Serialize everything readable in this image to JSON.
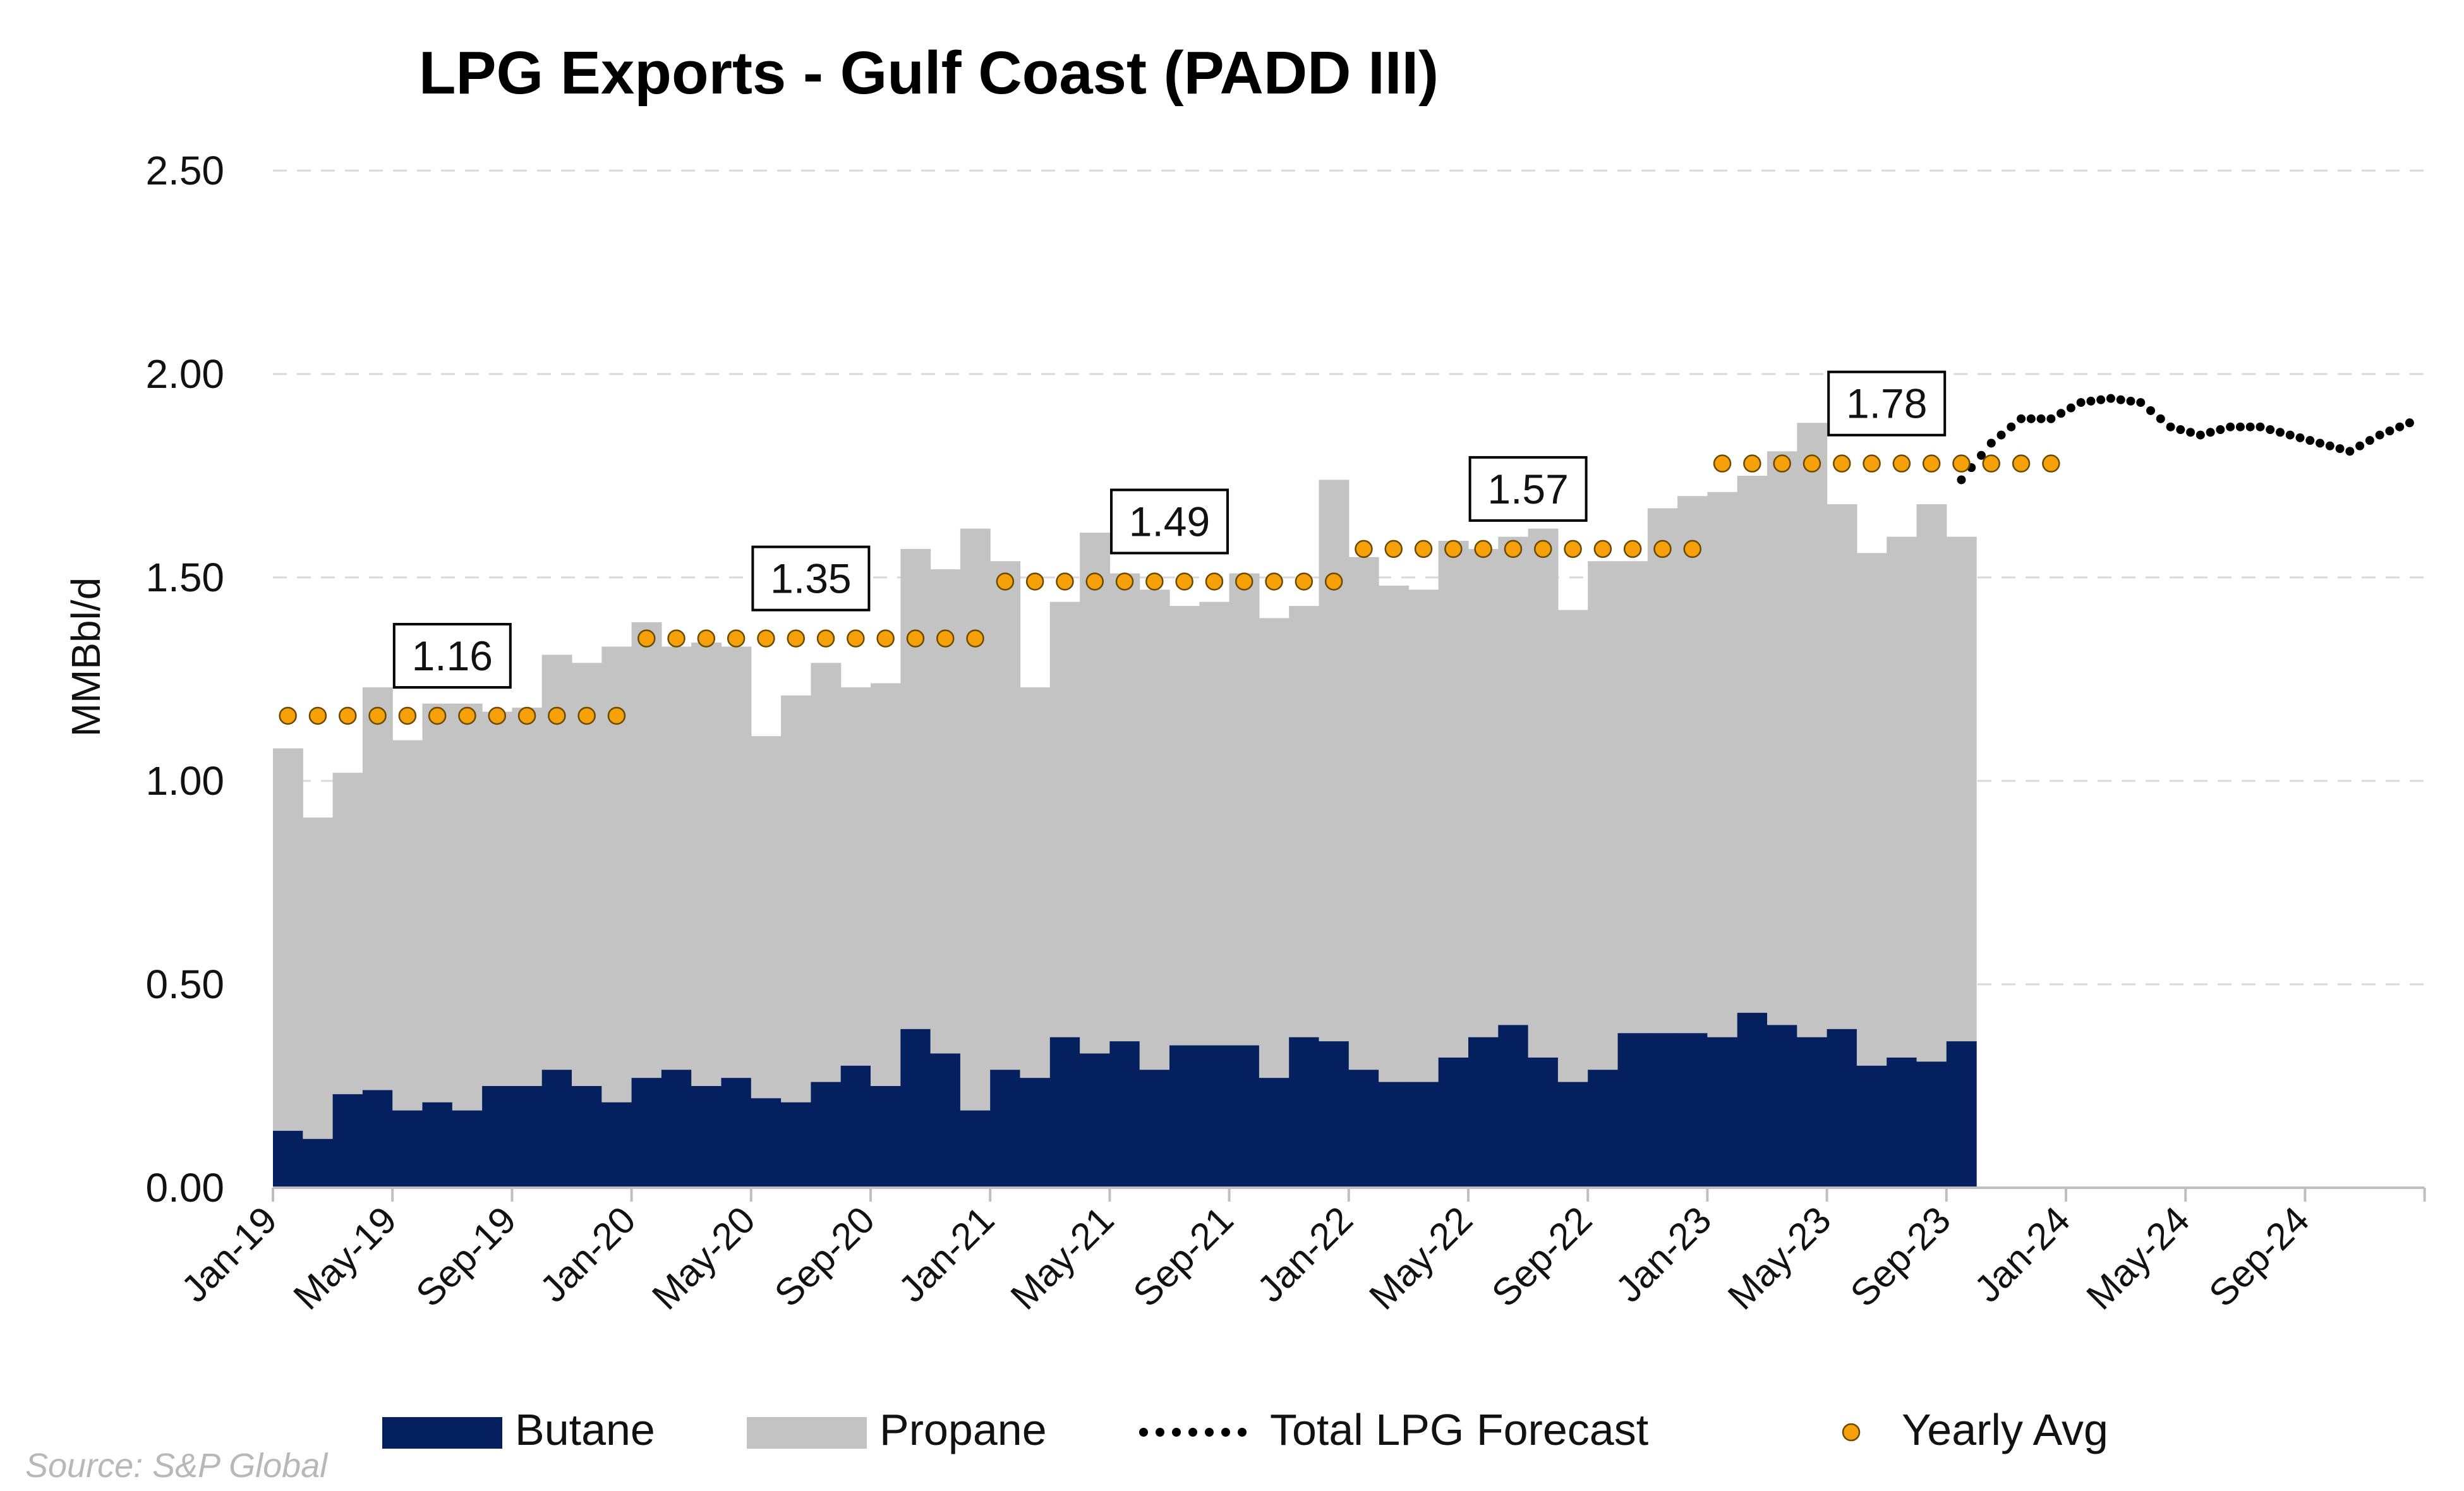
{
  "colors": {
    "butane": "#05205e",
    "propane": "#c3c3c3",
    "forecast": "#000000",
    "avg_fill": "#f7a10a",
    "avg_stroke": "#6a4a00",
    "grid": "#d9d9d9"
  },
  "source_text": "Source: S&P Global",
  "chart_data": {
    "type": "area",
    "title": "LPG Exports - Gulf Coast (PADD III)",
    "ylabel": "MMBbl/d",
    "ylim": [
      0,
      2.5
    ],
    "yticks": [
      "0.00",
      "0.50",
      "1.00",
      "1.50",
      "2.00",
      "2.50"
    ],
    "grid": "horizontal dashed",
    "legend_position": "bottom",
    "x_range": [
      "Jan-19",
      "Dec-24"
    ],
    "xticks": [
      "Jan-19",
      "May-19",
      "Sep-19",
      "Jan-20",
      "May-20",
      "Sep-20",
      "Jan-21",
      "May-21",
      "Sep-21",
      "Jan-22",
      "May-22",
      "Sep-22",
      "Jan-23",
      "May-23",
      "Sep-23",
      "Jan-24",
      "May-24",
      "Sep-24"
    ],
    "categories": [
      "Jan-19",
      "Feb-19",
      "Mar-19",
      "Apr-19",
      "May-19",
      "Jun-19",
      "Jul-19",
      "Aug-19",
      "Sep-19",
      "Oct-19",
      "Nov-19",
      "Dec-19",
      "Jan-20",
      "Feb-20",
      "Mar-20",
      "Apr-20",
      "May-20",
      "Jun-20",
      "Jul-20",
      "Aug-20",
      "Sep-20",
      "Oct-20",
      "Nov-20",
      "Dec-20",
      "Jan-21",
      "Feb-21",
      "Mar-21",
      "Apr-21",
      "May-21",
      "Jun-21",
      "Jul-21",
      "Aug-21",
      "Sep-21",
      "Oct-21",
      "Nov-21",
      "Dec-21",
      "Jan-22",
      "Feb-22",
      "Mar-22",
      "Apr-22",
      "May-22",
      "Jun-22",
      "Jul-22",
      "Aug-22",
      "Sep-22",
      "Oct-22",
      "Nov-22",
      "Dec-22",
      "Jan-23",
      "Feb-23",
      "Mar-23",
      "Apr-23",
      "May-23",
      "Jun-23",
      "Jul-23",
      "Aug-23",
      "Sep-23"
    ],
    "series": [
      {
        "name": "Butane",
        "kind": "stacked-area",
        "values": [
          0.14,
          0.12,
          0.23,
          0.24,
          0.19,
          0.21,
          0.19,
          0.25,
          0.25,
          0.29,
          0.25,
          0.21,
          0.27,
          0.29,
          0.25,
          0.27,
          0.22,
          0.21,
          0.26,
          0.3,
          0.25,
          0.39,
          0.33,
          0.19,
          0.29,
          0.27,
          0.37,
          0.33,
          0.36,
          0.29,
          0.35,
          0.35,
          0.35,
          0.27,
          0.37,
          0.36,
          0.29,
          0.26,
          0.26,
          0.32,
          0.37,
          0.4,
          0.32,
          0.26,
          0.29,
          0.38,
          0.38,
          0.38,
          0.37,
          0.43,
          0.4,
          0.37,
          0.39,
          0.3,
          0.32,
          0.31,
          0.36
        ]
      },
      {
        "name": "Propane",
        "kind": "stacked-area",
        "values": [
          0.94,
          0.79,
          0.79,
          0.99,
          0.91,
          0.98,
          1.0,
          0.92,
          0.93,
          1.02,
          1.04,
          1.12,
          1.12,
          1.04,
          1.09,
          1.06,
          0.89,
          1.0,
          1.03,
          0.93,
          0.99,
          1.18,
          1.19,
          1.43,
          1.25,
          0.96,
          1.07,
          1.28,
          1.15,
          1.18,
          1.08,
          1.09,
          1.16,
          1.13,
          1.06,
          1.38,
          1.26,
          1.22,
          1.21,
          1.27,
          1.2,
          1.2,
          1.3,
          1.16,
          1.25,
          1.16,
          1.29,
          1.32,
          1.34,
          1.32,
          1.41,
          1.51,
          1.29,
          1.26,
          1.28,
          1.37,
          1.24
        ]
      },
      {
        "name": "Total LPG Forecast",
        "kind": "dotted-line",
        "x": [
          "Sep-23",
          "Oct-23",
          "Nov-23",
          "Dec-23",
          "Jan-24",
          "Feb-24",
          "Mar-24",
          "Apr-24",
          "May-24",
          "Jun-24",
          "Jul-24",
          "Aug-24",
          "Sep-24",
          "Oct-24",
          "Nov-24",
          "Dec-24"
        ],
        "values": [
          1.74,
          1.83,
          1.89,
          1.89,
          1.93,
          1.94,
          1.93,
          1.87,
          1.85,
          1.87,
          1.87,
          1.85,
          1.83,
          1.81,
          1.85,
          1.88
        ]
      },
      {
        "name": "Yearly Avg",
        "kind": "dots",
        "segments": [
          {
            "year": 2019,
            "start": "Jan-19",
            "end": "Dec-19",
            "value": 1.16,
            "label": "1.16"
          },
          {
            "year": 2020,
            "start": "Jan-20",
            "end": "Dec-20",
            "value": 1.35,
            "label": "1.35"
          },
          {
            "year": 2021,
            "start": "Jan-21",
            "end": "Dec-21",
            "value": 1.49,
            "label": "1.49"
          },
          {
            "year": 2022,
            "start": "Jan-22",
            "end": "Dec-22",
            "value": 1.57,
            "label": "1.57"
          },
          {
            "year": 2023,
            "start": "Jan-23",
            "end": "Dec-23",
            "value": 1.78,
            "label": "1.78"
          }
        ]
      }
    ],
    "legend": [
      {
        "name": "Butane",
        "symbol": "rect"
      },
      {
        "name": "Propane",
        "symbol": "rect"
      },
      {
        "name": "Total LPG Forecast",
        "symbol": "dots"
      },
      {
        "name": "Yearly Avg",
        "symbol": "circle"
      }
    ]
  }
}
